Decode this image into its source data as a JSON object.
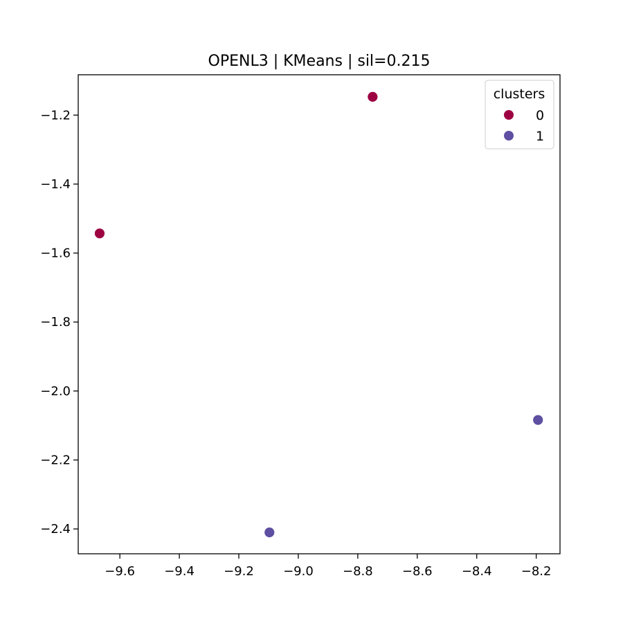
{
  "chart_data": {
    "type": "scatter",
    "title": "OPENL3 | KMeans | sil=0.215",
    "xlabel": "",
    "ylabel": "",
    "xlim": [
      -9.74,
      -8.12
    ],
    "ylim": [
      -2.472,
      -1.083
    ],
    "xticks": [
      -9.6,
      -9.4,
      -9.2,
      -9.0,
      -8.8,
      -8.6,
      -8.4,
      -8.2
    ],
    "xtick_labels": [
      "−9.6",
      "−9.4",
      "−9.2",
      "−9.0",
      "−8.8",
      "−8.6",
      "−8.4",
      "−8.2"
    ],
    "yticks": [
      -1.2,
      -1.4,
      -1.6,
      -1.8,
      -2.0,
      -2.2,
      -2.4
    ],
    "ytick_labels": [
      "−1.2",
      "−1.4",
      "−1.6",
      "−1.8",
      "−2.0",
      "−2.2",
      "−2.4"
    ],
    "grid": false,
    "legend": {
      "title": "clusters",
      "placement": "top-right",
      "entries": [
        {
          "label": "0",
          "color": "#9e0142"
        },
        {
          "label": "1",
          "color": "#5e4fa2"
        }
      ]
    },
    "series": [
      {
        "name": "0",
        "color": "#9e0142",
        "points": [
          {
            "x": -8.75,
            "y": -1.147
          },
          {
            "x": -9.668,
            "y": -1.543
          }
        ]
      },
      {
        "name": "1",
        "color": "#5e4fa2",
        "points": [
          {
            "x": -8.194,
            "y": -2.084
          },
          {
            "x": -9.097,
            "y": -2.41
          }
        ]
      }
    ]
  }
}
